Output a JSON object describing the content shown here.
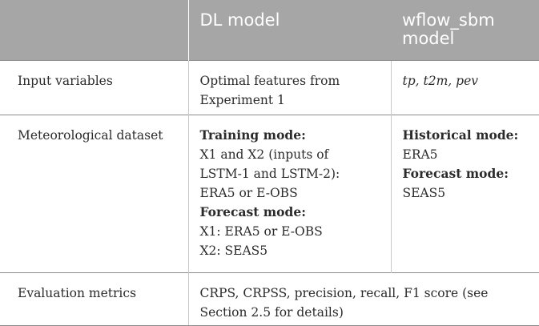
{
  "header": {
    "col1": "",
    "col2": "DL model",
    "col3": "wflow_sbm model"
  },
  "rows": [
    {
      "label": "Input variables",
      "dl": [
        "Optimal features from",
        "Experiment 1"
      ],
      "wflow": "tp, t2m, pev"
    },
    {
      "label": "Meteorological dataset",
      "dl": {
        "training_title": "Training mode:",
        "training_lines": [
          "X1 and X2 (inputs of",
          "LSTM-1 and LSTM-2):",
          "ERA5 or E-OBS"
        ],
        "forecast_title": "Forecast mode:",
        "forecast_lines": [
          "X1: ERA5 or E-OBS",
          "X2: SEAS5"
        ]
      },
      "wflow": {
        "historical_title": "Historical mode:",
        "historical_value": "ERA5",
        "forecast_title": "Forecast mode:",
        "forecast_value": "SEAS5"
      }
    },
    {
      "label": "Evaluation metrics",
      "merged": [
        "CRPS, CRPSS, precision, recall, F1 score (see",
        "Section 2.5 for details)"
      ]
    }
  ]
}
